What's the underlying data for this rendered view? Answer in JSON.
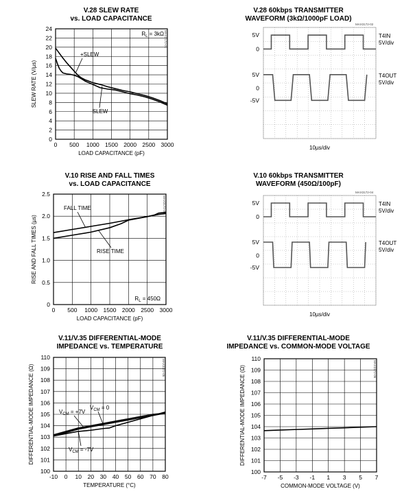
{
  "charts": [
    {
      "id": "slew",
      "title1": "V.28 SLEW RATE",
      "title2": "vs. LOAD CAPACITANCE",
      "code": "MAX3172-01",
      "chart_data": {
        "type": "line",
        "xlabel": "LOAD CAPACITANCE (pF)",
        "ylabel": "SLEW RATE (V/µs)",
        "xlim": [
          0,
          3000
        ],
        "ylim": [
          0,
          24
        ],
        "xticks": [
          "0",
          "500",
          "1000",
          "1500",
          "2000",
          "2500",
          "3000"
        ],
        "yticks": [
          "0",
          "2",
          "4",
          "6",
          "8",
          "10",
          "12",
          "14",
          "16",
          "18",
          "20",
          "22",
          "24"
        ],
        "grid": true,
        "condition": "RL = 3kΩ",
        "series": [
          {
            "name": "+SLEW",
            "x": [
              0,
              100,
              200,
              300,
              400,
              500,
              600,
              700,
              800,
              900,
              1000,
              1200,
              1400,
              1600,
              1800,
              2000,
              2200,
              2400,
              2600,
              2800,
              3000
            ],
            "y": [
              19.8,
              18.7,
              17.6,
              16.6,
              15.7,
              14.8,
              13.9,
              13.3,
              12.9,
              12.6,
              12.3,
              11.9,
              11.4,
              11.0,
              10.6,
              10.3,
              9.9,
              9.5,
              9.0,
              8.4,
              7.7
            ]
          },
          {
            "name": "-SLEW",
            "x": [
              0,
              50,
              100,
              150,
              200,
              300,
              400,
              500,
              600,
              700,
              800,
              1000,
              1200,
              1400,
              1600,
              1800,
              2000,
              2200,
              2400,
              2600,
              2800,
              3000
            ],
            "y": [
              17.6,
              16.4,
              15.4,
              14.8,
              14.4,
              14.2,
              14.1,
              13.9,
              13.6,
              13.1,
              12.6,
              11.9,
              11.2,
              10.9,
              10.7,
              10.3,
              9.9,
              9.6,
              9.2,
              8.7,
              8.1,
              7.4
            ]
          }
        ],
        "annotations": [
          "+SLEW",
          "-SLEW"
        ]
      }
    },
    {
      "id": "wave1",
      "title1": "V.28 60kbps TRANSMITTER",
      "title2": "WAVEFORM (3kΩ/1000pF LOAD)",
      "code": "MAX3172-02",
      "xlabel": "10µs/div",
      "left_labels": [
        "5V",
        "0",
        "5V",
        "0",
        "-5V"
      ],
      "right_labels": {
        "t4in": "T4IN",
        "t4in_scale": "5V/div",
        "t4out": "T4OUT",
        "t4out_scale": "5V/div"
      }
    },
    {
      "id": "rise",
      "title1": "V.10 RISE AND FALL TIMES",
      "title2": "vs. LOAD CAPACITANCE",
      "code": "MAX3172-03",
      "chart_data": {
        "type": "line",
        "xlabel": "LOAD CAPACITANCE (pF)",
        "ylabel": "RISE AND FALL TIMES (µs)",
        "xlim": [
          0,
          3000
        ],
        "ylim": [
          0,
          2.5
        ],
        "xticks": [
          "0",
          "500",
          "1000",
          "1500",
          "2000",
          "2500",
          "3000"
        ],
        "yticks": [
          "0",
          "0.5",
          "1.0",
          "1.5",
          "2.0",
          "2.5"
        ],
        "grid": true,
        "condition": "RL = 450Ω",
        "series": [
          {
            "name": "FALL TIME",
            "x": [
              0,
              500,
              1000,
              1500,
              2000,
              2500,
              2800,
              3000
            ],
            "y": [
              1.63,
              1.7,
              1.77,
              1.84,
              1.92,
              1.99,
              2.04,
              2.06
            ]
          },
          {
            "name": "RISE TIME",
            "x": [
              0,
              500,
              1000,
              1500,
              1800,
              2000,
              2500,
              2700,
              2800,
              3000
            ],
            "y": [
              1.5,
              1.57,
              1.64,
              1.74,
              1.83,
              1.91,
              1.99,
              2.03,
              2.07,
              2.09
            ]
          }
        ],
        "annotations": [
          "FALL TIME",
          "RISE TIME"
        ]
      }
    },
    {
      "id": "wave2",
      "title1": "V.10 60kbps TRANSMITTER",
      "title2": "WAVEFORM (450Ω/100pF)",
      "code": "MAX3172-04",
      "xlabel": "10µs/div",
      "left_labels": [
        "5V",
        "0",
        "5V",
        "0",
        "-5V"
      ],
      "right_labels": {
        "t4in": "T4IN",
        "t4in_scale": "5V/div",
        "t4out": "T4OUT",
        "t4out_scale": "5V/div"
      }
    },
    {
      "id": "imptemp",
      "title1": "V.11/V.35 DIFFERENTIAL-MODE",
      "title2": "IMPEDANCE vs. TEMPERATURE",
      "code": "MAX3172-05",
      "chart_data": {
        "type": "line",
        "xlabel": "TEMPERATURE (°C)",
        "ylabel": "DIFFERENTIAL-MODE IMPEDANCE (Ω)",
        "xlim": [
          -10,
          80
        ],
        "ylim": [
          100,
          110
        ],
        "xticks": [
          "-10",
          "0",
          "10",
          "20",
          "30",
          "40",
          "50",
          "60",
          "70",
          "80"
        ],
        "yticks": [
          "100",
          "101",
          "102",
          "103",
          "104",
          "105",
          "106",
          "107",
          "108",
          "109",
          "110"
        ],
        "grid": true,
        "series": [
          {
            "name": "VCM = +7V",
            "x": [
              -10,
              0,
              10,
              20,
              30,
              40,
              50,
              60,
              70,
              80
            ],
            "y": [
              103.2,
              103.5,
              103.8,
              104.0,
              104.2,
              104.4,
              104.6,
              104.8,
              105.0,
              105.1
            ]
          },
          {
            "name": "VCM = 0",
            "x": [
              -10,
              0,
              10,
              20,
              30,
              40,
              50,
              60,
              70,
              80
            ],
            "y": [
              103.1,
              103.4,
              103.7,
              103.9,
              104.1,
              104.3,
              104.5,
              104.7,
              104.9,
              105.1
            ]
          },
          {
            "name": "VCM = -7V",
            "x": [
              -10,
              0,
              10,
              20,
              30,
              35,
              40,
              50,
              60,
              70,
              80
            ],
            "y": [
              103.1,
              103.3,
              103.5,
              103.6,
              103.75,
              103.8,
              104.0,
              104.3,
              104.6,
              104.9,
              105.2
            ]
          }
        ],
        "annotations": [
          "VCM = +7V",
          "VCM = 0",
          "VCM = -7V"
        ]
      }
    },
    {
      "id": "impvcm",
      "title1": "V.11/V.35 DIFFERENTIAL-MODE",
      "title2": "IMPEDANCE vs. COMMON-MODE VOLTAGE",
      "code": "MAX3172-06",
      "chart_data": {
        "type": "line",
        "xlabel": "COMMON-MODE VOLTAGE (V)",
        "ylabel": "DIFFERENTIAL-MODE IMPEDANCE (Ω)",
        "xlim": [
          -7,
          7
        ],
        "ylim": [
          100,
          110
        ],
        "xticks": [
          "-7",
          "-5",
          "-3",
          "-1",
          "1",
          "3",
          "5",
          "7"
        ],
        "yticks": [
          "100",
          "101",
          "102",
          "103",
          "104",
          "105",
          "106",
          "107",
          "108",
          "109",
          "110"
        ],
        "grid": true,
        "series": [
          {
            "name": "",
            "x": [
              -7,
              -5,
              -3,
              -1,
              1,
              3,
              5,
              7
            ],
            "y": [
              103.65,
              103.7,
              103.75,
              103.8,
              103.85,
              103.9,
              103.95,
              104.0
            ]
          }
        ]
      }
    }
  ]
}
